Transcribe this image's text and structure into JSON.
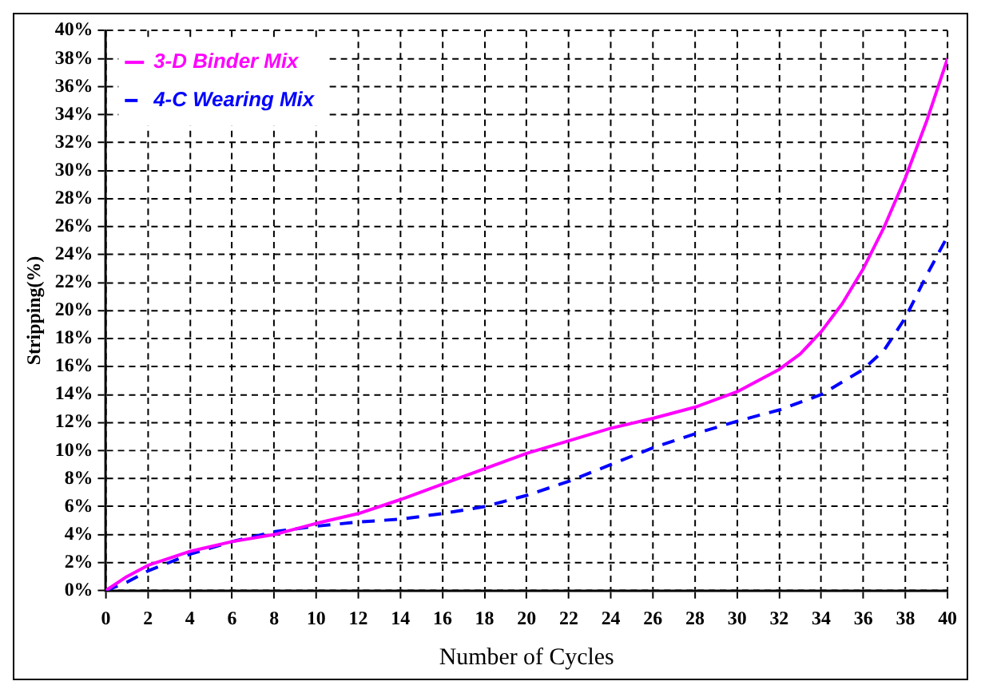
{
  "chart_data": {
    "type": "line",
    "xlabel": "Number of Cycles",
    "ylabel": "Stripping(%)",
    "xlim": [
      0,
      40
    ],
    "xticks": [
      0,
      2,
      4,
      6,
      8,
      10,
      12,
      14,
      16,
      18,
      20,
      22,
      24,
      26,
      28,
      30,
      32,
      34,
      36,
      38,
      40
    ],
    "ylim": [
      0,
      40
    ],
    "yticks": [
      {
        "value": 0,
        "label": "0%"
      },
      {
        "value": 2,
        "label": "2%"
      },
      {
        "value": 4,
        "label": "4%"
      },
      {
        "value": 6,
        "label": "6%"
      },
      {
        "value": 8,
        "label": "8%"
      },
      {
        "value": 10,
        "label": "10%"
      },
      {
        "value": 12,
        "label": "12%"
      },
      {
        "value": 14,
        "label": "14%"
      },
      {
        "value": 16,
        "label": "16%"
      },
      {
        "value": 18,
        "label": "18%"
      },
      {
        "value": 20,
        "label": "20%"
      },
      {
        "value": 22,
        "label": "22%"
      },
      {
        "value": 24,
        "label": "24%"
      },
      {
        "value": 26,
        "label": "26%"
      },
      {
        "value": 28,
        "label": "28%"
      },
      {
        "value": 30,
        "label": "30%"
      },
      {
        "value": 32,
        "label": "32%"
      },
      {
        "value": 34,
        "label": "34%"
      },
      {
        "value": 36,
        "label": "36%"
      },
      {
        "value": 38,
        "label": "38%"
      },
      {
        "value": 40,
        "label": "40%"
      }
    ],
    "grid": true,
    "legend": "top left",
    "marker": "none",
    "series": [
      {
        "name": "3-D Binder Mix",
        "color": "#ff00ff",
        "line_style": "solid",
        "x": [
          0,
          1,
          2,
          4,
          6,
          8,
          10,
          12,
          14,
          16,
          18,
          20,
          22,
          24,
          26,
          28,
          30,
          32,
          33,
          34,
          35,
          36,
          37,
          38,
          39,
          40
        ],
        "values": [
          0,
          1,
          1.8,
          2.8,
          3.5,
          4,
          4.8,
          5.5,
          6.5,
          7.6,
          8.7,
          9.8,
          10.7,
          11.6,
          12.3,
          13.1,
          14.2,
          15.8,
          16.9,
          18.5,
          20.5,
          23,
          26,
          29.5,
          33.5,
          38
        ]
      },
      {
        "name": "4-C Wearing Mix",
        "color": "#0000ff",
        "line_style": "dashed",
        "x": [
          0,
          1,
          2,
          4,
          6,
          8,
          10,
          12,
          14,
          16,
          18,
          20,
          22,
          24,
          26,
          28,
          30,
          32,
          34,
          36,
          37,
          38,
          39,
          40
        ],
        "values": [
          0,
          0.6,
          1.4,
          2.6,
          3.5,
          4.2,
          4.6,
          4.9,
          5.1,
          5.5,
          6,
          6.8,
          7.8,
          9,
          10.2,
          11.2,
          12.1,
          12.9,
          14,
          15.8,
          17.2,
          19.5,
          22.5,
          25.3
        ]
      }
    ]
  }
}
